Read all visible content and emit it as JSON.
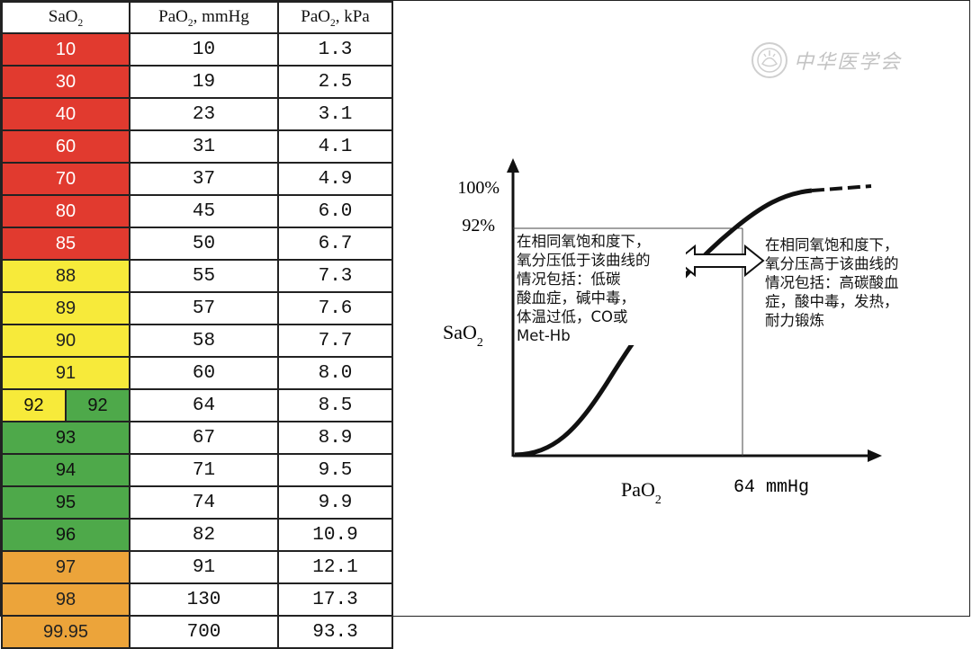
{
  "table": {
    "headers": {
      "sao2": "SaO",
      "sao2_sub": "2",
      "pao2_mmhg": "PaO",
      "pao2_mmhg_sub": "2",
      "pao2_mmhg_unit": ", mmHg",
      "pao2_kpa": "PaO",
      "pao2_kpa_sub": "2",
      "pao2_kpa_unit": ", kPa"
    },
    "rows": [
      {
        "sao2": "10",
        "mmhg": "10",
        "kpa": "1.3",
        "color": "#e13a2f"
      },
      {
        "sao2": "30",
        "mmhg": "19",
        "kpa": "2.5",
        "color": "#e13a2f"
      },
      {
        "sao2": "40",
        "mmhg": "23",
        "kpa": "3.1",
        "color": "#e13a2f"
      },
      {
        "sao2": "60",
        "mmhg": "31",
        "kpa": "4.1",
        "color": "#e13a2f"
      },
      {
        "sao2": "70",
        "mmhg": "37",
        "kpa": "4.9",
        "color": "#e13a2f"
      },
      {
        "sao2": "80",
        "mmhg": "45",
        "kpa": "6.0",
        "color": "#e13a2f"
      },
      {
        "sao2": "85",
        "mmhg": "50",
        "kpa": "6.7",
        "color": "#e13a2f"
      },
      {
        "sao2": "88",
        "mmhg": "55",
        "kpa": "7.3",
        "color": "#f7ea3a"
      },
      {
        "sao2": "89",
        "mmhg": "57",
        "kpa": "7.6",
        "color": "#f7ea3a"
      },
      {
        "sao2": "90",
        "mmhg": "58",
        "kpa": "7.7",
        "color": "#f7ea3a"
      },
      {
        "sao2": "91",
        "mmhg": "60",
        "kpa": "8.0",
        "color": "#f7ea3a"
      },
      {
        "sao2": "92",
        "sao2_b": "92",
        "mmhg": "64",
        "kpa": "8.5",
        "color": "split"
      },
      {
        "sao2": "93",
        "mmhg": "67",
        "kpa": "8.9",
        "color": "#4ea94a"
      },
      {
        "sao2": "94",
        "mmhg": "71",
        "kpa": "9.5",
        "color": "#4ea94a"
      },
      {
        "sao2": "95",
        "mmhg": "74",
        "kpa": "9.9",
        "color": "#4ea94a"
      },
      {
        "sao2": "96",
        "mmhg": "82",
        "kpa": "10.9",
        "color": "#4ea94a"
      },
      {
        "sao2": "97",
        "mmhg": "91",
        "kpa": "12.1",
        "color": "#eca43a"
      },
      {
        "sao2": "98",
        "mmhg": "130",
        "kpa": "17.3",
        "color": "#eca43a"
      },
      {
        "sao2": "99.95",
        "mmhg": "700",
        "kpa": "93.3",
        "color": "#eca43a"
      }
    ]
  },
  "watermark": {
    "text": "中华医学会",
    "icon": "society-seal-icon"
  },
  "chart_data": {
    "type": "line",
    "y_axis_label": "SaO",
    "y_axis_label_sub": "2",
    "x_axis_label": "PaO",
    "x_axis_label_sub": "2",
    "y_ticks": [
      "100%",
      "92%"
    ],
    "x_marker_label": "64 mmHg",
    "reference": {
      "x": "64 mmHg",
      "y": "92%"
    },
    "series": [
      {
        "style": "solid sigmoid, dashed beyond 100% region"
      }
    ],
    "annotations": {
      "left": [
        "在相同氧饱和度下，",
        "氧分压低于该曲线的",
        "情况包括：低碳",
        "酸血症，碱中毒，",
        "体温过低，CO或",
        "Met-Hb"
      ],
      "right": [
        "在相同氧饱和度下，",
        "氧分压高于该曲线的",
        "情况包括：高碳酸血",
        "症，酸中毒，发热，",
        "耐力锻炼"
      ]
    }
  }
}
